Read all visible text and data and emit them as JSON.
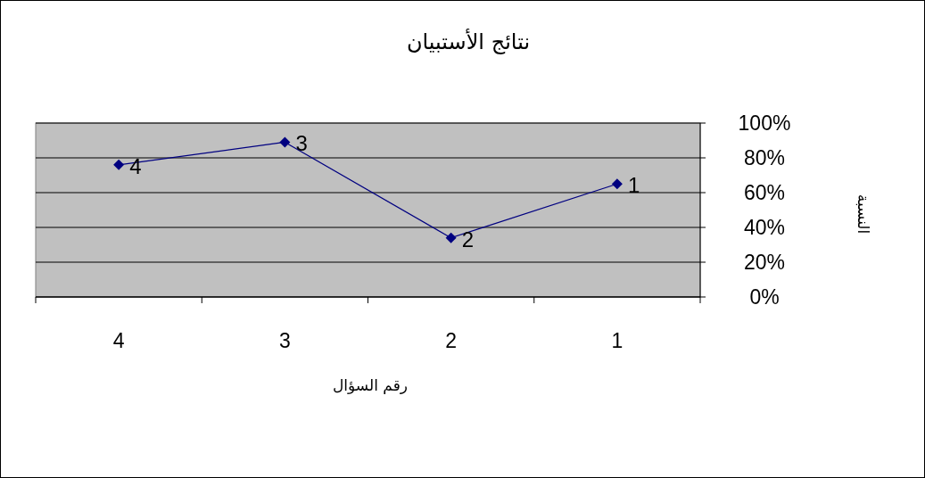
{
  "chart_data": {
    "type": "line",
    "title": "نتائج الأستبيان",
    "xlabel": "رقم السؤال",
    "ylabel": "النسبة",
    "categories": [
      "4",
      "3",
      "2",
      "1"
    ],
    "series": [
      {
        "color": "#000080",
        "values": [
          76,
          89,
          34,
          65
        ]
      }
    ],
    "ylim": [
      0,
      100
    ],
    "yticks": [
      {
        "value": 0,
        "label": "0%"
      },
      {
        "value": 20,
        "label": "20%"
      },
      {
        "value": 40,
        "label": "40%"
      },
      {
        "value": 60,
        "label": "60%"
      },
      {
        "value": 80,
        "label": "80%"
      },
      {
        "value": 100,
        "label": "100%"
      }
    ],
    "annotations": [
      {
        "text": "4",
        "x": "4",
        "y": 76
      },
      {
        "text": "3",
        "x": "3",
        "y": 89
      },
      {
        "text": "2",
        "x": "2",
        "y": 34
      },
      {
        "text": "1",
        "x": "1",
        "y": 65
      }
    ],
    "grid": "y",
    "marker": "diamond",
    "line_style": "solid"
  }
}
